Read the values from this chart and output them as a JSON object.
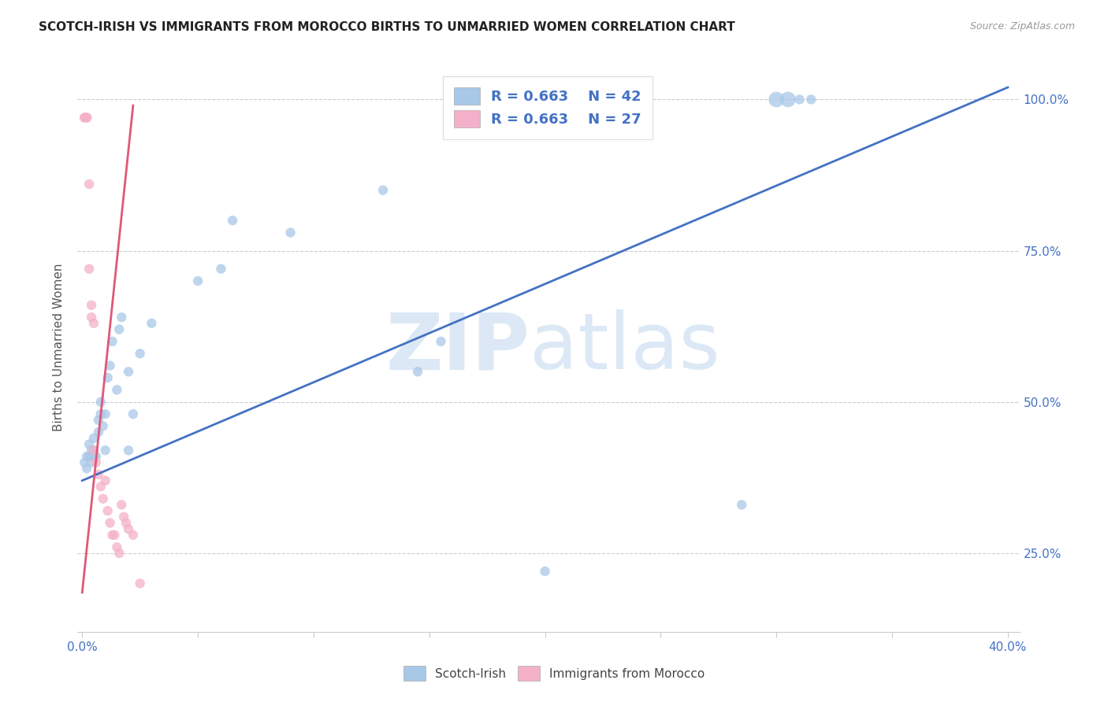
{
  "title": "SCOTCH-IRISH VS IMMIGRANTS FROM MOROCCO BIRTHS TO UNMARRIED WOMEN CORRELATION CHART",
  "source": "Source: ZipAtlas.com",
  "ylabel": "Births to Unmarried Women",
  "xlabel_scotch": "Scotch-Irish",
  "xlabel_morocco": "Immigrants from Morocco",
  "xlim": [
    -0.002,
    0.405
  ],
  "ylim": [
    0.12,
    1.06
  ],
  "yticks": [
    0.25,
    0.5,
    0.75,
    1.0
  ],
  "yticklabels": [
    "25.0%",
    "50.0%",
    "75.0%",
    "100.0%"
  ],
  "legend_blue_r": "R = 0.663",
  "legend_blue_n": "N = 42",
  "legend_pink_r": "R = 0.663",
  "legend_pink_n": "N = 27",
  "blue_color": "#a8c8e8",
  "pink_color": "#f4b0c8",
  "blue_line_color": "#4472c4",
  "pink_line_color": "#e05878",
  "legend_text_color": "#4472c4",
  "watermark_zip": "ZIP",
  "watermark_atlas": "atlas",
  "scotch_x": [
    0.001,
    0.002,
    0.002,
    0.003,
    0.003,
    0.004,
    0.004,
    0.005,
    0.005,
    0.005,
    0.006,
    0.007,
    0.007,
    0.008,
    0.008,
    0.009,
    0.01,
    0.01,
    0.011,
    0.012,
    0.013,
    0.015,
    0.016,
    0.017,
    0.02,
    0.02,
    0.022,
    0.025,
    0.03,
    0.05,
    0.06,
    0.065,
    0.09,
    0.13,
    0.145,
    0.155,
    0.2,
    0.285,
    0.3,
    0.305,
    0.31,
    0.315
  ],
  "scotch_y": [
    0.4,
    0.39,
    0.41,
    0.41,
    0.43,
    0.42,
    0.4,
    0.42,
    0.44,
    0.41,
    0.41,
    0.45,
    0.47,
    0.48,
    0.5,
    0.46,
    0.48,
    0.42,
    0.54,
    0.56,
    0.6,
    0.52,
    0.62,
    0.64,
    0.55,
    0.42,
    0.48,
    0.58,
    0.63,
    0.7,
    0.72,
    0.8,
    0.78,
    0.85,
    0.55,
    0.6,
    0.22,
    0.33,
    1.0,
    1.0,
    1.0,
    1.0
  ],
  "scotch_size": [
    80,
    80,
    80,
    80,
    80,
    80,
    80,
    80,
    80,
    80,
    80,
    80,
    80,
    80,
    80,
    80,
    80,
    80,
    80,
    80,
    80,
    80,
    80,
    80,
    80,
    80,
    80,
    80,
    80,
    80,
    80,
    80,
    80,
    80,
    80,
    80,
    80,
    80,
    200,
    200,
    80,
    80
  ],
  "morocco_x": [
    0.001,
    0.001,
    0.002,
    0.002,
    0.003,
    0.003,
    0.004,
    0.004,
    0.005,
    0.005,
    0.006,
    0.007,
    0.008,
    0.009,
    0.01,
    0.011,
    0.012,
    0.013,
    0.014,
    0.015,
    0.016,
    0.017,
    0.018,
    0.019,
    0.02,
    0.022,
    0.025
  ],
  "morocco_y": [
    0.97,
    0.97,
    0.97,
    0.97,
    0.86,
    0.72,
    0.66,
    0.64,
    0.63,
    0.42,
    0.4,
    0.38,
    0.36,
    0.34,
    0.37,
    0.32,
    0.3,
    0.28,
    0.28,
    0.26,
    0.25,
    0.33,
    0.31,
    0.3,
    0.29,
    0.28,
    0.2
  ],
  "morocco_size": [
    80,
    80,
    80,
    80,
    80,
    80,
    80,
    80,
    80,
    80,
    80,
    80,
    80,
    80,
    80,
    80,
    80,
    80,
    80,
    80,
    80,
    80,
    80,
    80,
    80,
    80,
    80
  ],
  "blue_line_x0": 0.0,
  "blue_line_y0": 0.37,
  "blue_line_x1": 0.4,
  "blue_line_y1": 1.02,
  "pink_line_x0": 0.0,
  "pink_line_y0": 0.185,
  "pink_line_x1": 0.022,
  "pink_line_y1": 0.99
}
